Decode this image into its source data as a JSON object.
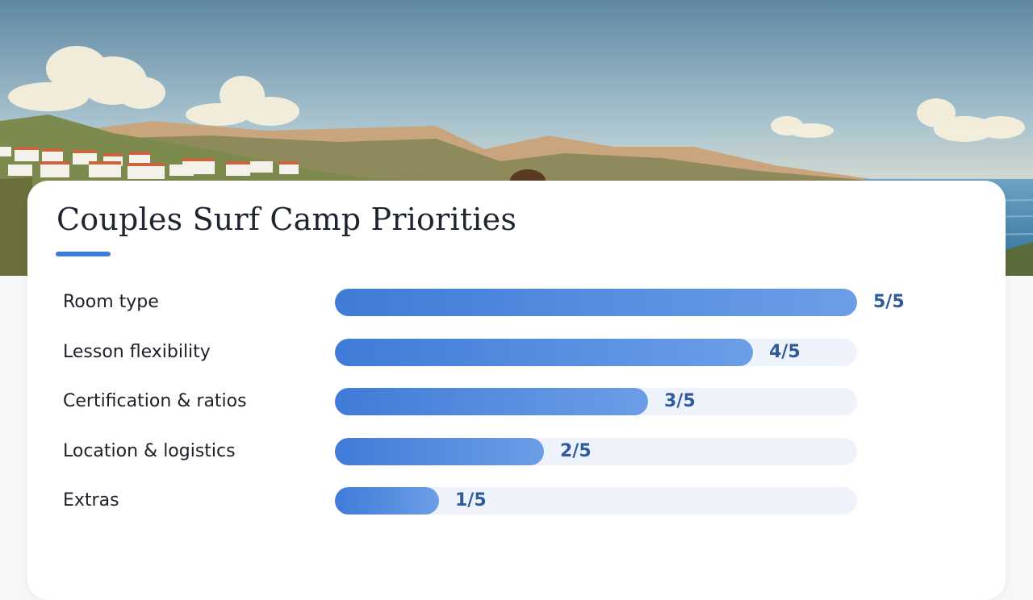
{
  "chart_data": {
    "type": "bar",
    "orientation": "horizontal",
    "title": "Couples Surf Camp Priorities",
    "categories": [
      "Room type",
      "Lesson flexibility",
      "Certification & ratios",
      "Location & logistics",
      "Extras"
    ],
    "values": [
      5,
      4,
      3,
      2,
      1
    ],
    "value_labels": [
      "5/5",
      "4/5",
      "3/5",
      "2/5",
      "1/5"
    ],
    "xlim": [
      0,
      5
    ],
    "grid": false,
    "legend": "none"
  },
  "colors": {
    "accent": "#3f7bd8",
    "bar_track": "#eef3fb",
    "value_text": "#2f5a9c"
  },
  "hero": {
    "scene": "coastal-village-landscape"
  }
}
